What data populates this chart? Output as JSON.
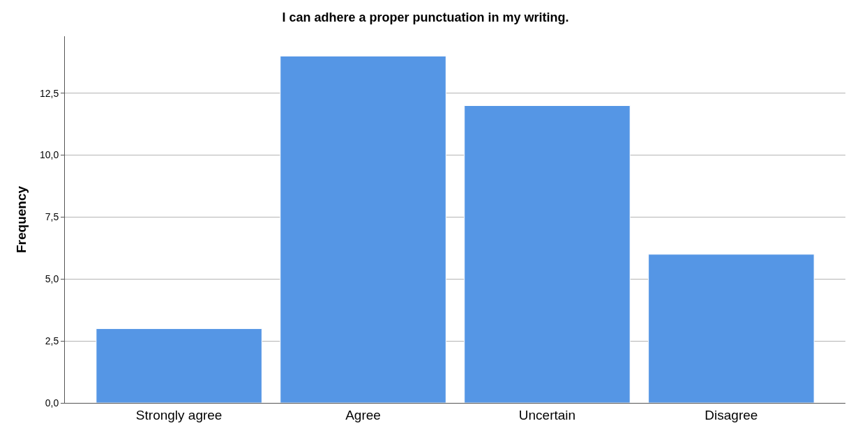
{
  "chart_data": {
    "type": "bar",
    "title": "I can adhere a proper punctuation in my writing.",
    "ylabel": "Frequency",
    "categories": [
      "Strongly agree",
      "Agree",
      "Uncertain",
      "Disagree"
    ],
    "values": [
      3,
      14,
      12,
      6
    ],
    "color": "#5596e5",
    "ylim": [
      0,
      14.8
    ],
    "yticks": [
      {
        "value": 0,
        "label": "0,0"
      },
      {
        "value": 2.5,
        "label": "2,5"
      },
      {
        "value": 5,
        "label": "5,0"
      },
      {
        "value": 7.5,
        "label": "7,5"
      },
      {
        "value": 10,
        "label": "10,0"
      },
      {
        "value": 12.5,
        "label": "12,5"
      }
    ],
    "grid": "y"
  }
}
